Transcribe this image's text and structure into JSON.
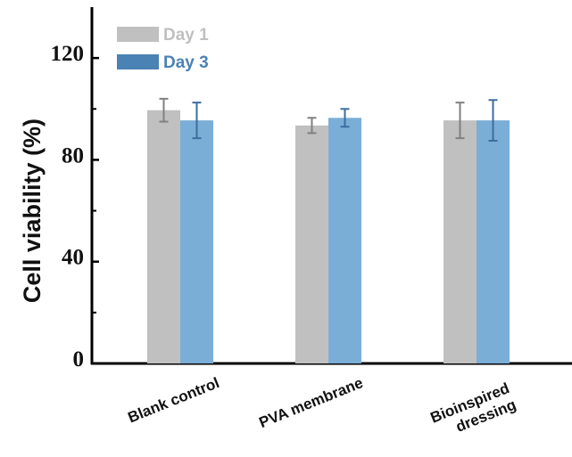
{
  "chart_data": {
    "type": "bar",
    "title": "",
    "xlabel": "",
    "ylabel": "Cell viability (%)",
    "ylim": [
      0,
      140
    ],
    "yticks": [
      0,
      40,
      80,
      120
    ],
    "categories": [
      [
        "Blank control"
      ],
      [
        "PVA membrane"
      ],
      [
        "Bioinspired",
        "dressing"
      ]
    ],
    "series": [
      {
        "name": "Day 1",
        "color": "#c0c0c0",
        "error_color": "#808080",
        "values": [
          99.5,
          93.5,
          95.5
        ],
        "errors": [
          4.5,
          3.0,
          7.0
        ]
      },
      {
        "name": "Day 3",
        "color": "#7aaed6",
        "legend_color": "#4a82b4",
        "error_color": "#3b6e9e",
        "values": [
          95.5,
          96.5,
          95.5
        ],
        "errors": [
          7.0,
          3.5,
          8.0
        ]
      }
    ],
    "legend": "top-left",
    "grid": false
  }
}
